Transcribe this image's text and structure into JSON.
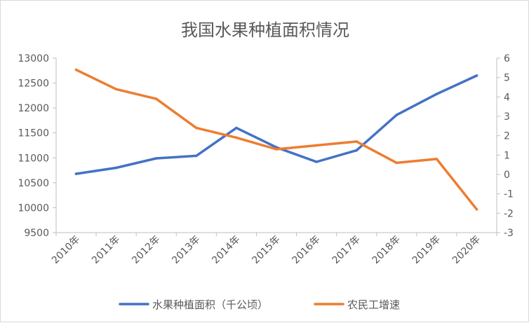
{
  "chart_data": {
    "type": "line",
    "title": "我国水果种植面积情况",
    "categories": [
      "2010年",
      "2011年",
      "2012年",
      "2013年",
      "2014年",
      "2015年",
      "2016年",
      "2017年",
      "2018年",
      "2019年",
      "2020年"
    ],
    "series": [
      {
        "name": "水果种植面积（千公顷）",
        "axis": "left",
        "color": "#4472C4",
        "values": [
          10680,
          10800,
          10990,
          11040,
          11600,
          11210,
          10920,
          11150,
          11860,
          12280,
          12650
        ]
      },
      {
        "name": "农民工增速",
        "axis": "right",
        "color": "#ED7D31",
        "values": [
          5.4,
          4.4,
          3.9,
          2.4,
          1.9,
          1.3,
          1.5,
          1.7,
          0.6,
          0.8,
          -1.8
        ]
      }
    ],
    "y_left": {
      "min": 9500,
      "max": 13000,
      "ticks": [
        "9500",
        "10000",
        "10500",
        "11000",
        "11500",
        "12000",
        "12500",
        "13000"
      ]
    },
    "y_right": {
      "min": -3,
      "max": 6,
      "ticks": [
        "-3",
        "-2",
        "-1",
        "0",
        "1",
        "2",
        "3",
        "4",
        "5",
        "6"
      ]
    },
    "grid": false,
    "legend": "bottom"
  }
}
